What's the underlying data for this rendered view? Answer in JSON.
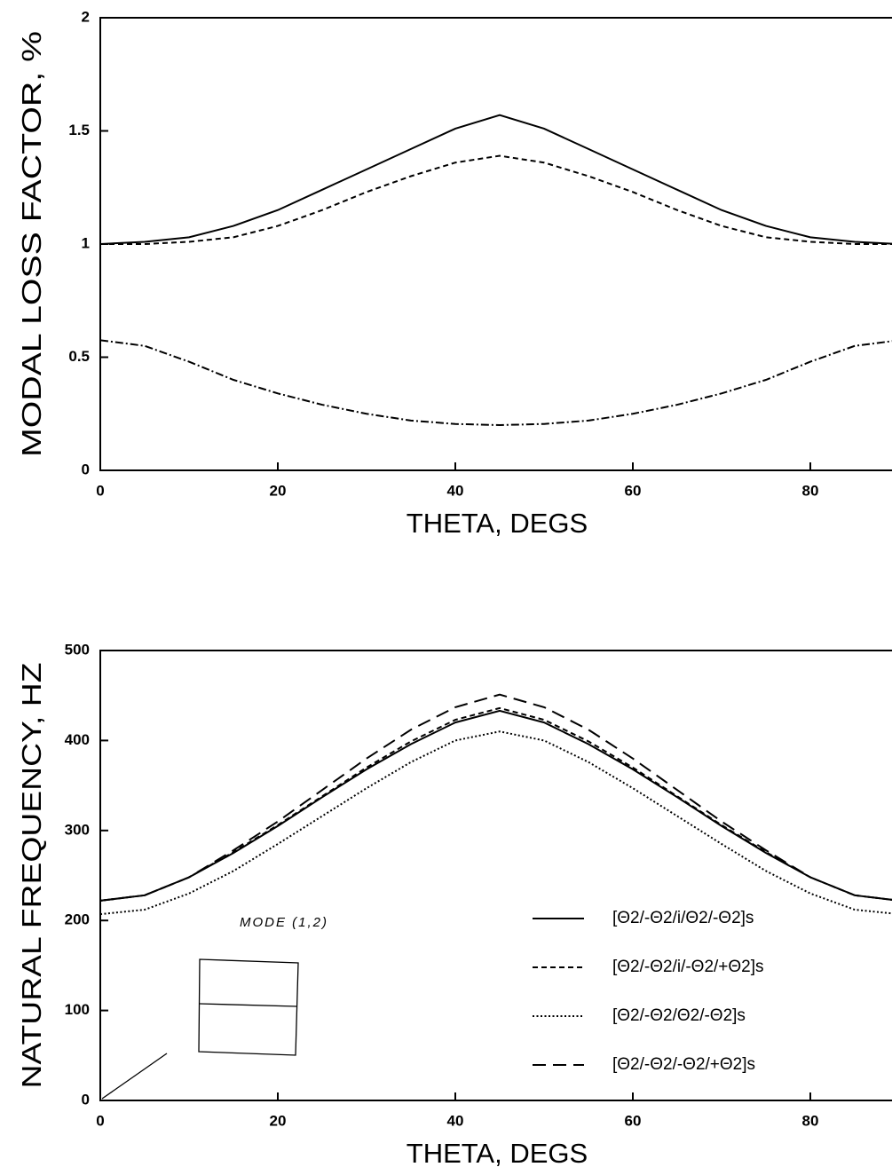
{
  "chart_data": [
    {
      "type": "line",
      "xlabel": "THETA, DEGS",
      "ylabel": "MODAL LOSS FACTOR, %",
      "x": [
        0,
        5,
        10,
        15,
        20,
        25,
        30,
        35,
        40,
        45,
        50,
        55,
        60,
        65,
        70,
        75,
        80,
        85,
        90
      ],
      "xlim": [
        0,
        90
      ],
      "xticks": [
        0,
        20,
        40,
        60,
        80
      ],
      "ylim": [
        0,
        2
      ],
      "yticks": [
        0,
        0.5,
        1,
        1.5,
        2
      ],
      "series": [
        {
          "color": "#000000",
          "dash": "solid",
          "values": [
            1.0,
            1.01,
            1.03,
            1.08,
            1.15,
            1.24,
            1.33,
            1.42,
            1.51,
            1.57,
            1.51,
            1.42,
            1.33,
            1.24,
            1.15,
            1.08,
            1.03,
            1.01,
            1.0
          ]
        },
        {
          "color": "#000000",
          "dash": "dashed",
          "values": [
            1.0,
            1.0,
            1.01,
            1.03,
            1.08,
            1.15,
            1.23,
            1.3,
            1.36,
            1.39,
            1.36,
            1.3,
            1.23,
            1.15,
            1.08,
            1.03,
            1.01,
            1.0,
            1.0
          ]
        },
        {
          "color": "#000000",
          "dash": "dashdot",
          "values": [
            0.575,
            0.55,
            0.48,
            0.4,
            0.34,
            0.29,
            0.25,
            0.22,
            0.205,
            0.2,
            0.205,
            0.22,
            0.25,
            0.29,
            0.34,
            0.4,
            0.48,
            0.55,
            0.575
          ]
        }
      ]
    },
    {
      "type": "line",
      "xlabel": "THETA, DEGS",
      "ylabel": "NATURAL FREQUENCY, HZ",
      "annotation": "MODE (1,2)",
      "legend": "lower right",
      "x": [
        0,
        5,
        10,
        15,
        20,
        25,
        30,
        35,
        40,
        45,
        50,
        55,
        60,
        65,
        70,
        75,
        80,
        85,
        90
      ],
      "xlim": [
        0,
        90
      ],
      "xticks": [
        0,
        20,
        40,
        60,
        80
      ],
      "ylim": [
        0,
        500
      ],
      "yticks": [
        0,
        100,
        200,
        300,
        400,
        500
      ],
      "series": [
        {
          "name": "[Θ2/-Θ2/i/Θ2/-Θ2]s",
          "color": "#000000",
          "dash": "solid",
          "values": [
            222,
            228,
            248,
            275,
            305,
            337,
            368,
            396,
            420,
            433,
            420,
            396,
            368,
            337,
            305,
            275,
            248,
            228,
            222
          ]
        },
        {
          "name": "[Θ2/-Θ2/i/-Θ2/+Θ2]s",
          "color": "#000000",
          "dash": "dashed",
          "values": [
            222,
            228,
            248,
            276,
            306,
            338,
            370,
            399,
            423,
            436,
            423,
            399,
            370,
            338,
            306,
            276,
            248,
            228,
            222
          ]
        },
        {
          "name": "[Θ2/-Θ2/Θ2/-Θ2]s",
          "color": "#000000",
          "dash": "dotted",
          "values": [
            207,
            212,
            230,
            255,
            285,
            316,
            347,
            376,
            400,
            410,
            400,
            376,
            347,
            316,
            285,
            255,
            230,
            212,
            207
          ]
        },
        {
          "name": "[Θ2/-Θ2/-Θ2/+Θ2]s",
          "color": "#000000",
          "dash": "longdash",
          "values": [
            222,
            228,
            248,
            278,
            310,
            345,
            380,
            412,
            437,
            451,
            437,
            412,
            380,
            345,
            310,
            278,
            248,
            228,
            222
          ]
        }
      ]
    }
  ]
}
